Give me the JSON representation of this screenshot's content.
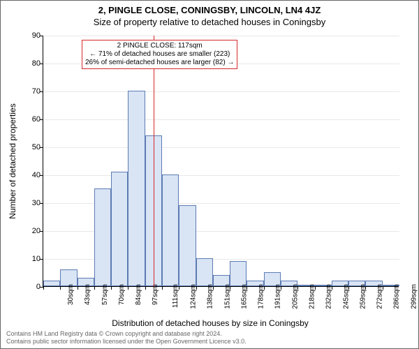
{
  "title_address": "2, PINGLE CLOSE, CONINGSBY, LINCOLN, LN4 4JZ",
  "title_sub": "Size of property relative to detached houses in Coningsby",
  "ylabel": "Number of detached properties",
  "xlabel": "Distribution of detached houses by size in Coningsby",
  "footer1": "Contains HM Land Registry data © Crown copyright and database right 2024.",
  "footer2": "Contains public sector information licensed under the Open Government Licence v3.0.",
  "histogram": {
    "type": "histogram",
    "x_labels": [
      "30sqm",
      "43sqm",
      "57sqm",
      "70sqm",
      "84sqm",
      "97sqm",
      "111sqm",
      "124sqm",
      "138sqm",
      "151sqm",
      "165sqm",
      "178sqm",
      "191sqm",
      "205sqm",
      "218sqm",
      "232sqm",
      "245sqm",
      "259sqm",
      "272sqm",
      "286sqm",
      "299sqm"
    ],
    "values": [
      2,
      6,
      3,
      35,
      41,
      70,
      54,
      40,
      29,
      10,
      4,
      9,
      2,
      5,
      2,
      0,
      0,
      2,
      2,
      2,
      0
    ],
    "bar_fill": "#d9e4f5",
    "bar_stroke": "#5b7bb3",
    "ymax": 90,
    "ytick_step": 10,
    "grid_color": "#e8e8e8",
    "background": "#ffffff",
    "reference_line": {
      "x_index": 6.5,
      "color": "#d62728"
    },
    "annotation": {
      "border_color": "#d62728",
      "line1": "2 PINGLE CLOSE: 117sqm",
      "line2": "← 71% of detached houses are smaller (223)",
      "line3": "26% of semi-detached houses are larger (82) →"
    },
    "label_fontsize": 11,
    "title_fontsize": 13
  }
}
